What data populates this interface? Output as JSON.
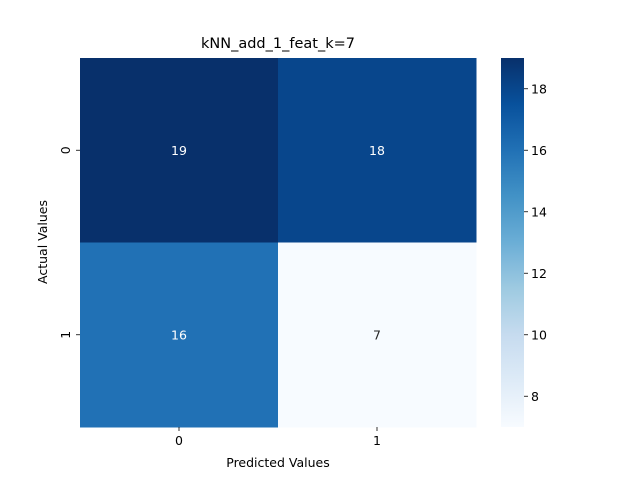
{
  "chart_data": {
    "type": "heatmap",
    "title": "kNN_add_1_feat_k=7",
    "xlabel": "Predicted Values",
    "ylabel": "Actual Values",
    "x_categories": [
      "0",
      "1"
    ],
    "y_categories": [
      "0",
      "1"
    ],
    "values": [
      [
        19,
        18
      ],
      [
        16,
        7
      ]
    ],
    "colormap": "Blues",
    "color_range": [
      7,
      19
    ],
    "colorbar_ticks": [
      8,
      10,
      12,
      14,
      16,
      18
    ],
    "colorbar_tick_labels": [
      "8",
      "10",
      "12",
      "14",
      "16",
      "18"
    ]
  }
}
